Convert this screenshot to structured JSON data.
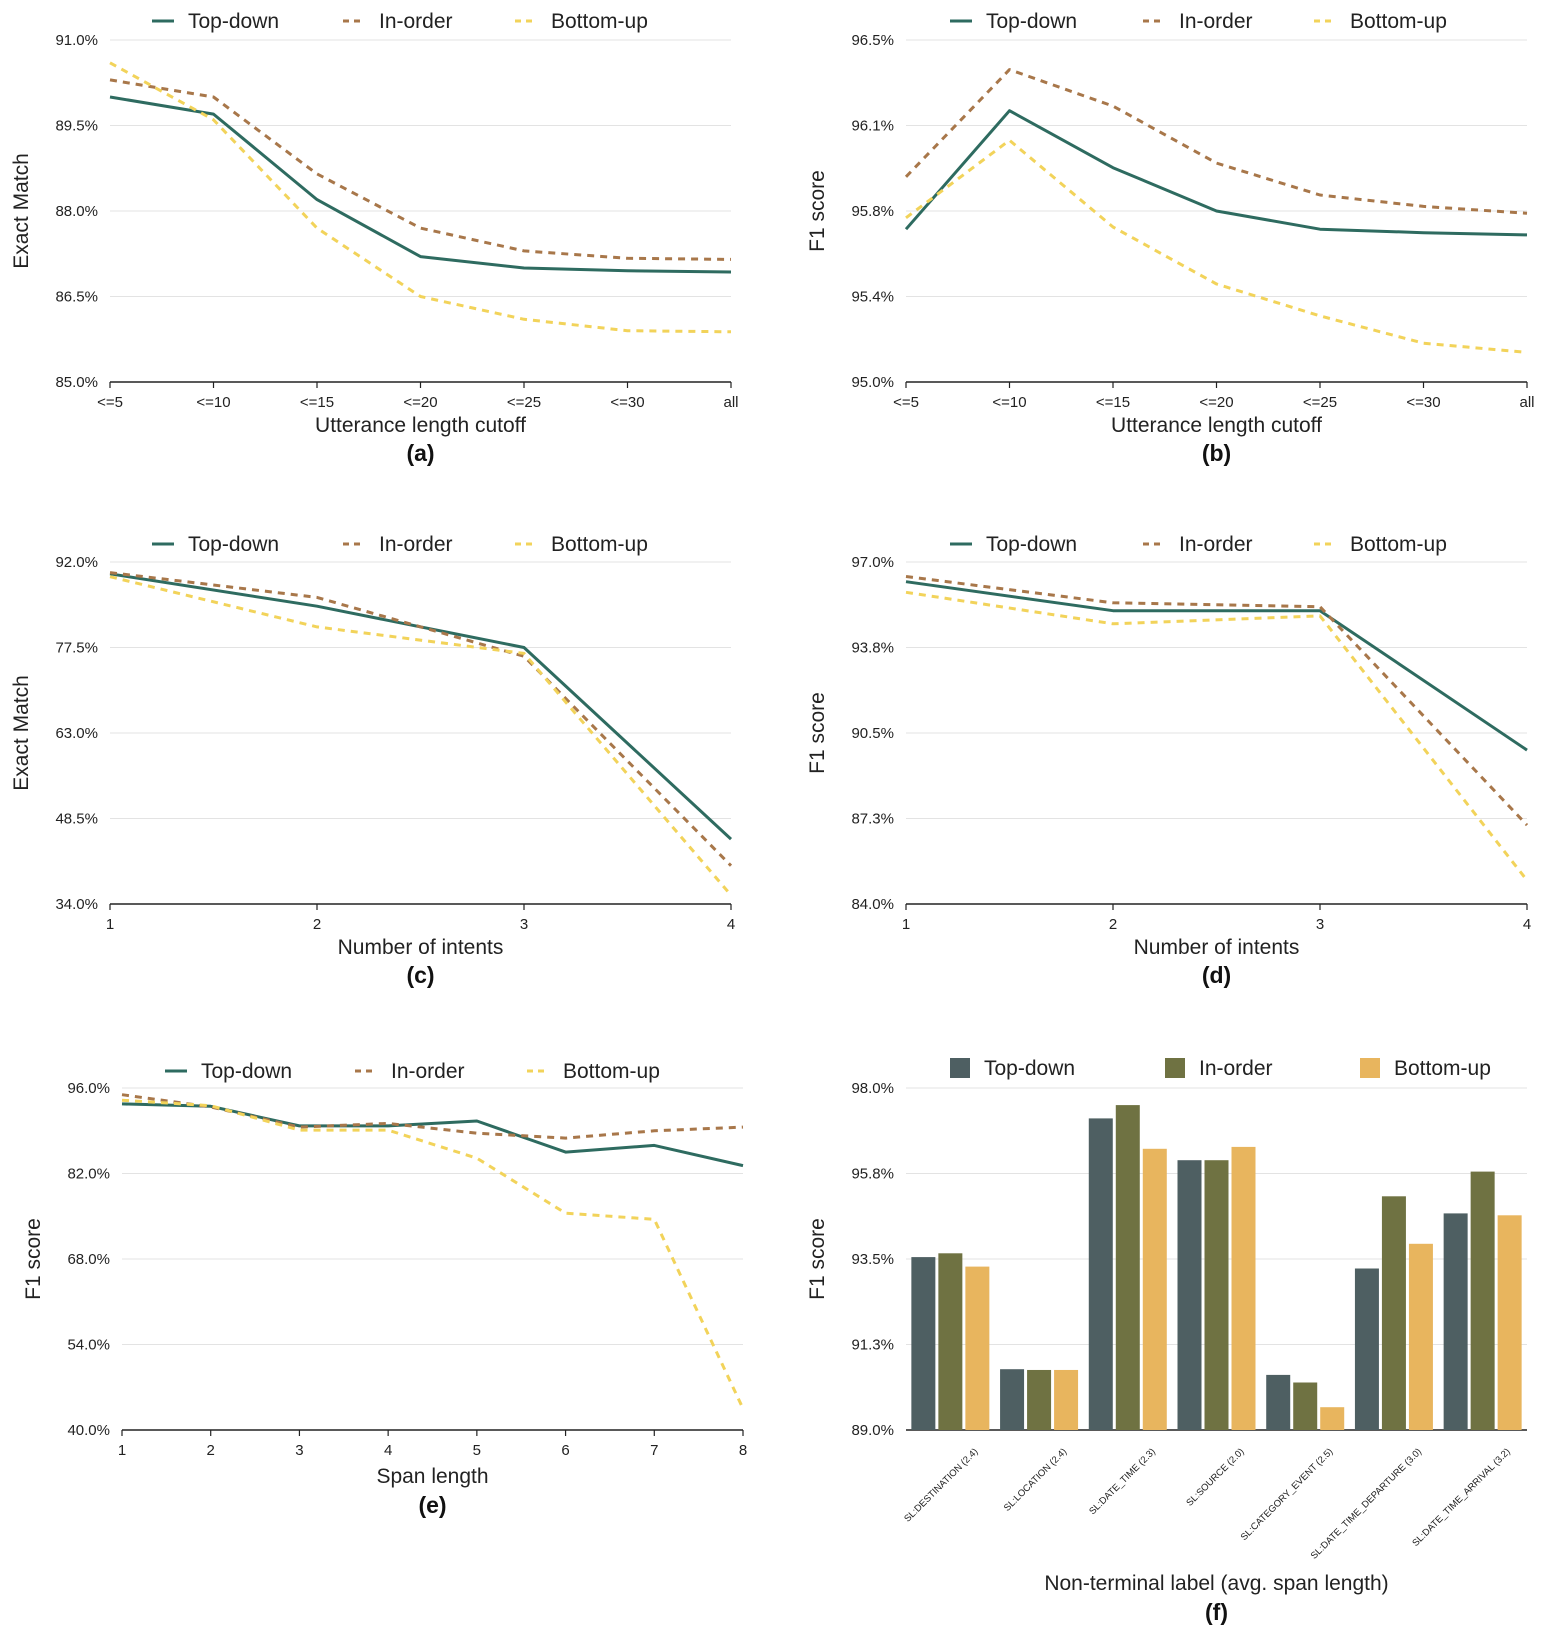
{
  "colors": {
    "topdown_line": "#2e6b60",
    "inorder_line": "#a8774a",
    "bottomup_line": "#f2d35a",
    "topdown_bar": "#4e5f62",
    "inorder_bar": "#6f7242",
    "bottomup_bar": "#e8b55e",
    "grid": "#e3e3e3",
    "axis": "#222222"
  },
  "chart_data": [
    {
      "id": "a",
      "type": "line",
      "panel_label": "(a)",
      "xlabel": "Utterance length cutoff",
      "ylabel": "Exact Match",
      "legend_position": "top",
      "categories": [
        "<=5",
        "<=10",
        "<=15",
        "<=20",
        "<=25",
        "<=30",
        "all"
      ],
      "ylim": [
        85.0,
        91.0
      ],
      "yticks": [
        "85.0%",
        "86.5%",
        "88.0%",
        "89.5%",
        "91.0%"
      ],
      "series": [
        {
          "name": "Top-down",
          "style": "solid",
          "values": [
            90.0,
            89.7,
            88.2,
            87.2,
            87.0,
            86.95,
            86.93
          ]
        },
        {
          "name": "In-order",
          "style": "dashed",
          "values": [
            90.3,
            90.0,
            88.65,
            87.7,
            87.3,
            87.17,
            87.15
          ]
        },
        {
          "name": "Bottom-up",
          "style": "dashed",
          "values": [
            90.6,
            89.6,
            87.7,
            86.5,
            86.1,
            85.9,
            85.88
          ]
        }
      ]
    },
    {
      "id": "b",
      "type": "line",
      "panel_label": "(b)",
      "xlabel": "Utterance length cutoff",
      "ylabel": "F1 score",
      "legend_position": "top",
      "categories": [
        "<=5",
        "<=10",
        "<=15",
        "<=20",
        "<=25",
        "<=30",
        "all"
      ],
      "ylim": [
        95.0,
        96.5
      ],
      "yticks": [
        "95.0%",
        "95.4%",
        "95.8%",
        "96.1%",
        "96.5%"
      ],
      "series": [
        {
          "name": "Top-down",
          "style": "solid",
          "values": [
            95.67,
            96.19,
            95.94,
            95.75,
            95.67,
            95.655,
            95.645
          ]
        },
        {
          "name": "In-order",
          "style": "dashed",
          "values": [
            95.9,
            96.37,
            96.21,
            95.96,
            95.82,
            95.77,
            95.74
          ]
        },
        {
          "name": "Bottom-up",
          "style": "dashed",
          "values": [
            95.72,
            96.06,
            95.68,
            95.43,
            95.29,
            95.17,
            95.13
          ]
        }
      ]
    },
    {
      "id": "c",
      "type": "line",
      "panel_label": "(c)",
      "xlabel": "Number of intents",
      "ylabel": "Exact Match",
      "legend_position": "top",
      "categories": [
        "1",
        "2",
        "3",
        "4"
      ],
      "ylim": [
        34.0,
        92.0
      ],
      "yticks": [
        "34.0%",
        "48.5%",
        "63.0%",
        "77.5%",
        "92.0%"
      ],
      "series": [
        {
          "name": "Top-down",
          "style": "solid",
          "values": [
            90.0,
            84.5,
            77.5,
            45.0
          ]
        },
        {
          "name": "In-order",
          "style": "dashed",
          "values": [
            90.2,
            86.0,
            76.0,
            40.5
          ]
        },
        {
          "name": "Bottom-up",
          "style": "dashed",
          "values": [
            89.5,
            81.0,
            76.5,
            35.5
          ]
        }
      ]
    },
    {
      "id": "d",
      "type": "line",
      "panel_label": "(d)",
      "xlabel": "Number of intents",
      "ylabel": "F1 score",
      "legend_position": "top",
      "categories": [
        "1",
        "2",
        "3",
        "4"
      ],
      "ylim": [
        84.0,
        97.0
      ],
      "yticks": [
        "84.0%",
        "87.3%",
        "90.5%",
        "93.8%",
        "97.0%"
      ],
      "series": [
        {
          "name": "Top-down",
          "style": "solid",
          "values": [
            96.25,
            95.15,
            95.15,
            89.85
          ]
        },
        {
          "name": "In-order",
          "style": "dashed",
          "values": [
            96.45,
            95.45,
            95.3,
            87.0
          ]
        },
        {
          "name": "Bottom-up",
          "style": "dashed",
          "values": [
            95.85,
            94.65,
            94.95,
            84.9
          ]
        }
      ]
    },
    {
      "id": "e",
      "type": "line",
      "panel_label": "(e)",
      "xlabel": "Span length",
      "ylabel": "F1 score",
      "legend_position": "top",
      "categories": [
        "1",
        "2",
        "3",
        "4",
        "5",
        "6",
        "7",
        "8"
      ],
      "ylim": [
        40.0,
        96.0
      ],
      "yticks": [
        "40.0%",
        "54.0%",
        "68.0%",
        "82.0%",
        "96.0%"
      ],
      "series": [
        {
          "name": "Top-down",
          "style": "solid",
          "values": [
            93.4,
            93.0,
            89.8,
            89.8,
            90.6,
            85.5,
            86.6,
            83.3
          ]
        },
        {
          "name": "In-order",
          "style": "dashed",
          "values": [
            94.9,
            92.9,
            89.6,
            90.2,
            88.6,
            87.8,
            89.0,
            89.6
          ]
        },
        {
          "name": "Bottom-up",
          "style": "dashed",
          "values": [
            94.0,
            93.1,
            89.1,
            89.1,
            84.5,
            75.5,
            74.5,
            43.5
          ]
        }
      ]
    },
    {
      "id": "f",
      "type": "bar",
      "panel_label": "(f)",
      "xlabel": "Non-terminal label (avg. span length)",
      "ylabel": "F1 score",
      "legend_position": "top",
      "categories": [
        "SL:DESTINATION (2.4)",
        "SL:LOCATION (2.4)",
        "SL:DATE_TIME (2.3)",
        "SL:SOURCE (2.0)",
        "SL:CATEGORY_EVENT (2.5)",
        "SL:DATE_TIME_DEPARTURE (3.0)",
        "SL:DATE_TIME_ARRIVAL (3.2)"
      ],
      "ylim": [
        89.0,
        98.0
      ],
      "yticks": [
        "89.0%",
        "91.3%",
        "93.5%",
        "95.8%",
        "98.0%"
      ],
      "series": [
        {
          "name": "Top-down",
          "values": [
            93.55,
            90.6,
            97.2,
            96.1,
            90.45,
            93.25,
            94.7
          ]
        },
        {
          "name": "In-order",
          "values": [
            93.65,
            90.58,
            97.55,
            96.1,
            90.25,
            95.15,
            95.8
          ]
        },
        {
          "name": "Bottom-up",
          "values": [
            93.3,
            90.58,
            96.4,
            96.45,
            89.6,
            93.9,
            94.65
          ]
        }
      ]
    }
  ]
}
